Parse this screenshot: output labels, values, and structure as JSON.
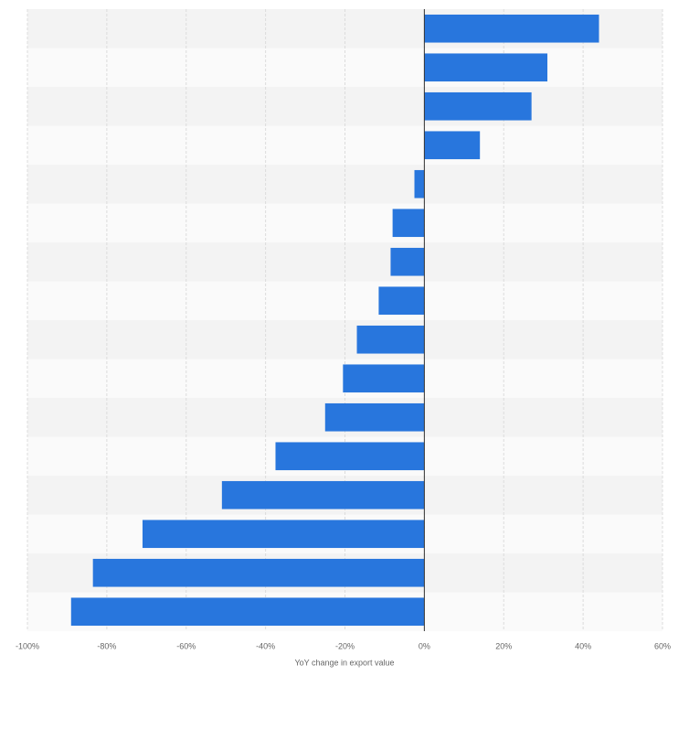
{
  "chart_data": {
    "type": "hbar",
    "xlabel": "YoY change in export value",
    "categories": [
      null,
      null,
      null,
      null,
      null,
      null,
      null,
      null,
      null,
      null,
      null,
      null,
      null,
      null,
      null,
      null
    ],
    "values": [
      44,
      31,
      27,
      14,
      -2.5,
      -8,
      -8.5,
      -11.5,
      -17,
      -20.5,
      -25,
      -37.5,
      -51,
      -71,
      -83.5,
      -89
    ],
    "color": "#2876dd",
    "xlim": [
      -100,
      60
    ],
    "xticks": [
      {
        "value": -100,
        "label": "-100%"
      },
      {
        "value": -80,
        "label": "-80%"
      },
      {
        "value": -60,
        "label": "-60%"
      },
      {
        "value": -40,
        "label": "-40%"
      },
      {
        "value": -20,
        "label": "-20%"
      },
      {
        "value": 0,
        "label": "0%"
      },
      {
        "value": 20,
        "label": "20%"
      },
      {
        "value": 40,
        "label": "40%"
      },
      {
        "value": 60,
        "label": "60%"
      }
    ],
    "grid": true
  }
}
